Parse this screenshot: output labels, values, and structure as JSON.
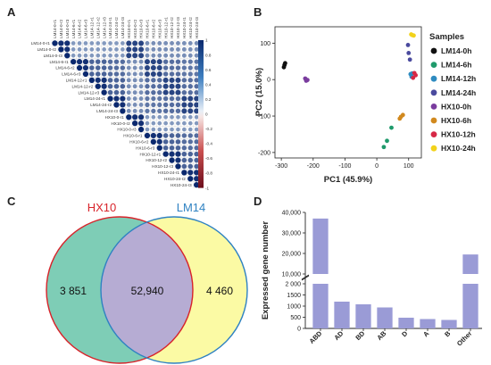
{
  "panels": {
    "A": "A",
    "B": "B",
    "C": "C",
    "D": "D"
  },
  "samples_A": [
    "LM14-0-r1",
    "LM14-0-r2",
    "LM14-0-r3",
    "LM14-6-r1",
    "LM14-6-r2",
    "LM14-6-r3",
    "LM14-12-r1",
    "LM14-12-r2",
    "LM14-12-r3",
    "LM14-24-r1",
    "LM14-24-r2",
    "LM14-24-r3",
    "HX10-0-r1",
    "HX10-0-r2",
    "HX10-0-r3",
    "HX10-6-r1",
    "HX10-6-r2",
    "HX10-6-r3",
    "HX10-12-r1",
    "HX10-12-r2",
    "HX10-12-r3",
    "HX10-24-r1",
    "HX10-24-r2",
    "HX10-24-r3"
  ],
  "colorbar_ticks": [
    "1",
    "0.8",
    "0.6",
    "0.4",
    "0.2",
    "0",
    "-0.2",
    "-0.4",
    "-0.6",
    "-0.8",
    "-1"
  ],
  "chart_data": [
    {
      "panel": "B",
      "type": "scatter",
      "xlabel": "PC1 (45.9%)",
      "ylabel": "PC2 (15.0%)",
      "xlim": [
        -320,
        140
      ],
      "ylim": [
        -215,
        145
      ],
      "xticks": [
        -300,
        -200,
        -100,
        0,
        100
      ],
      "yticks": [
        100,
        0,
        -100,
        -200
      ],
      "legend_title": "Samples",
      "legend_position": "right",
      "series": [
        {
          "name": "LM14-0h",
          "color": "#111111",
          "points": [
            [
              -290,
              40
            ],
            [
              -288,
              45
            ],
            [
              -292,
              34
            ]
          ]
        },
        {
          "name": "LM14-6h",
          "color": "#1f9a6b",
          "points": [
            [
              32,
              -168
            ],
            [
              22,
              -185
            ],
            [
              46,
              -132
            ]
          ]
        },
        {
          "name": "LM14-12h",
          "color": "#2e8bc0",
          "points": [
            [
              106,
              15
            ],
            [
              111,
              17
            ],
            [
              109,
              8
            ]
          ]
        },
        {
          "name": "LM14-24h",
          "color": "#4a4a9e",
          "points": [
            [
              98,
              95
            ],
            [
              100,
              73
            ],
            [
              104,
              55
            ]
          ]
        },
        {
          "name": "HX10-0h",
          "color": "#7a3c9e",
          "points": [
            [
              -225,
              3
            ],
            [
              -222,
              -3
            ],
            [
              -218,
              -1
            ]
          ]
        },
        {
          "name": "HX10-6h",
          "color": "#d1891e",
          "points": [
            [
              76,
              -102
            ],
            [
              82,
              -97
            ],
            [
              72,
              -107
            ]
          ]
        },
        {
          "name": "HX10-12h",
          "color": "#d62846",
          "points": [
            [
              122,
              12
            ],
            [
              114,
              5
            ],
            [
              118,
              18
            ]
          ]
        },
        {
          "name": "HX10-24h",
          "color": "#f2d21b",
          "points": [
            [
              108,
              124
            ],
            [
              112,
              122
            ],
            [
              116,
              121
            ]
          ]
        }
      ]
    },
    {
      "panel": "C",
      "type": "venn",
      "sets": [
        "HX10",
        "LM14"
      ],
      "only_HX10": "3 851",
      "intersection": "52,940",
      "only_LM14": "4 460",
      "colors": {
        "HX10_fill": "#7ecdb6",
        "LM14_fill": "#fbfaa4",
        "overlap_fill": "#b6acd3",
        "HX10_stroke": "#d8232a",
        "LM14_stroke": "#2f82c2"
      }
    },
    {
      "panel": "D",
      "type": "bar",
      "ylabel": "Expressed gene number",
      "axis_break": [
        2000,
        10000
      ],
      "yticks_lower": [
        "0",
        "500",
        "1000",
        "1500",
        "2 000"
      ],
      "yticks_upper": [
        "10,000",
        "20,000",
        "30,000",
        "40,000"
      ],
      "categories": [
        "ABD",
        "AD",
        "BD",
        "AB",
        "D",
        "A",
        "B",
        "Other"
      ],
      "values": [
        37000,
        1200,
        1080,
        940,
        480,
        420,
        380,
        19500
      ],
      "bar_color": "#9a9bd6"
    }
  ]
}
